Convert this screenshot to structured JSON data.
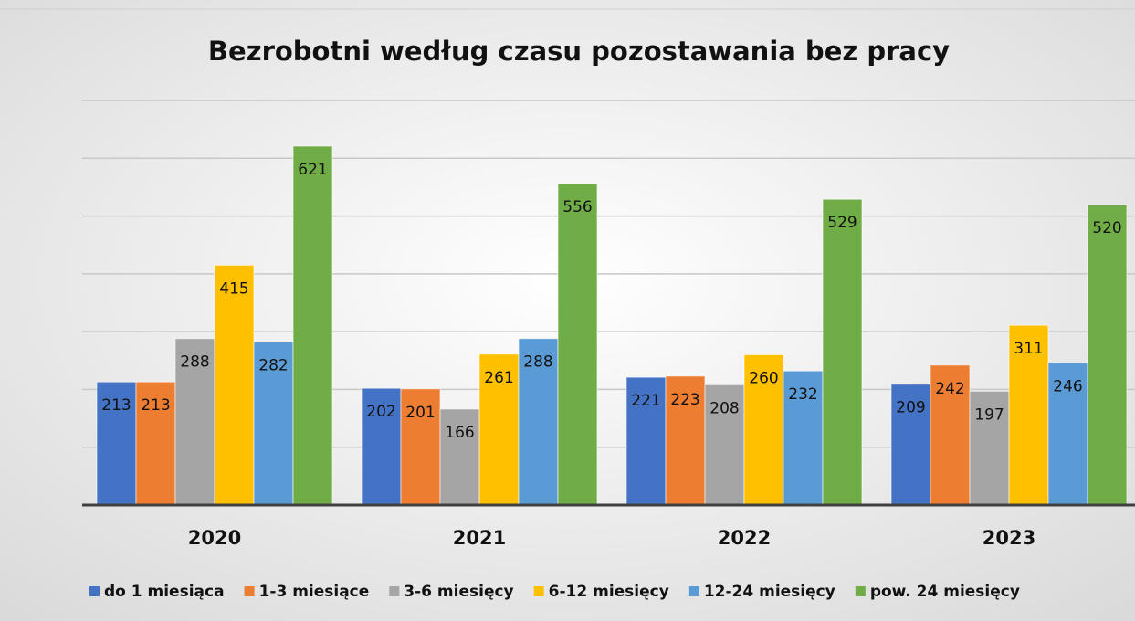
{
  "chart_data": {
    "type": "bar",
    "title": "Bezrobotni według czasu pozostawania bez pracy",
    "categories": [
      "2020",
      "2021",
      "2022",
      "2023"
    ],
    "series": [
      {
        "name": "do 1 miesiąca",
        "color": "#4472c4",
        "values": [
          213,
          202,
          221,
          209
        ]
      },
      {
        "name": "1-3 miesiące",
        "color": "#ed7d31",
        "values": [
          213,
          201,
          223,
          242
        ]
      },
      {
        "name": "3-6 miesięcy",
        "color": "#a5a5a5",
        "values": [
          288,
          166,
          208,
          197
        ]
      },
      {
        "name": "6-12 miesięcy",
        "color": "#ffc000",
        "values": [
          415,
          261,
          260,
          311
        ]
      },
      {
        "name": "12-24 miesięcy",
        "color": "#5b9bd5",
        "values": [
          282,
          288,
          232,
          246
        ]
      },
      {
        "name": "pow. 24 miesięcy",
        "color": "#70ad47",
        "values": [
          621,
          556,
          529,
          520
        ]
      }
    ],
    "ylim": [
      0,
      700
    ],
    "yticks": [
      0,
      100,
      200,
      300,
      400,
      500,
      600,
      700
    ],
    "grid": true,
    "legend": "bottom"
  }
}
